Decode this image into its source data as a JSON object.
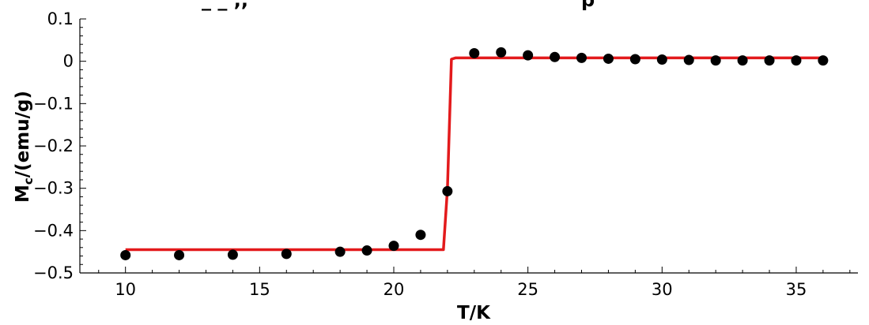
{
  "chart_data": {
    "type": "scatter",
    "title_fragments": [
      "_  _  ,,",
      "p"
    ],
    "xlabel": "T/K",
    "ylabel_main": "M",
    "ylabel_sub": "c",
    "ylabel_rest": "/(emu/g)",
    "xlim": [
      8.3,
      37.3
    ],
    "ylim": [
      -0.5,
      0.1
    ],
    "x_major_ticks": [
      10,
      15,
      20,
      25,
      30,
      35
    ],
    "x_tick_labels": [
      "10",
      "15",
      "20",
      "25",
      "30",
      "35"
    ],
    "y_major_ticks": [
      -0.5,
      -0.4,
      -0.3,
      -0.2,
      -0.1,
      0,
      0.1
    ],
    "y_tick_labels": [
      "-0.5",
      "-0.4",
      "-0.3",
      "-0.2",
      "-0.1",
      "0",
      "0.1"
    ],
    "grid": false,
    "series": [
      {
        "kind": "points",
        "color": "#000000",
        "x": [
          10,
          12,
          14,
          16,
          18,
          19,
          20,
          21,
          22,
          23,
          24,
          25,
          26,
          27,
          28,
          29,
          30,
          31,
          32,
          33,
          34,
          35,
          36
        ],
        "y": [
          -0.458,
          -0.458,
          -0.457,
          -0.455,
          -0.45,
          -0.447,
          -0.436,
          -0.41,
          -0.307,
          0.019,
          0.021,
          0.014,
          0.01,
          0.008,
          0.006,
          0.005,
          0.004,
          0.003,
          0.002,
          0.002,
          0.002,
          0.002,
          0.002
        ]
      },
      {
        "kind": "line",
        "color": "#e31a1c",
        "x": [
          10,
          21.85,
          22.0,
          22.15,
          22.3,
          36
        ],
        "y": [
          -0.445,
          -0.445,
          -0.3,
          0.005,
          0.008,
          0.008
        ]
      }
    ]
  }
}
